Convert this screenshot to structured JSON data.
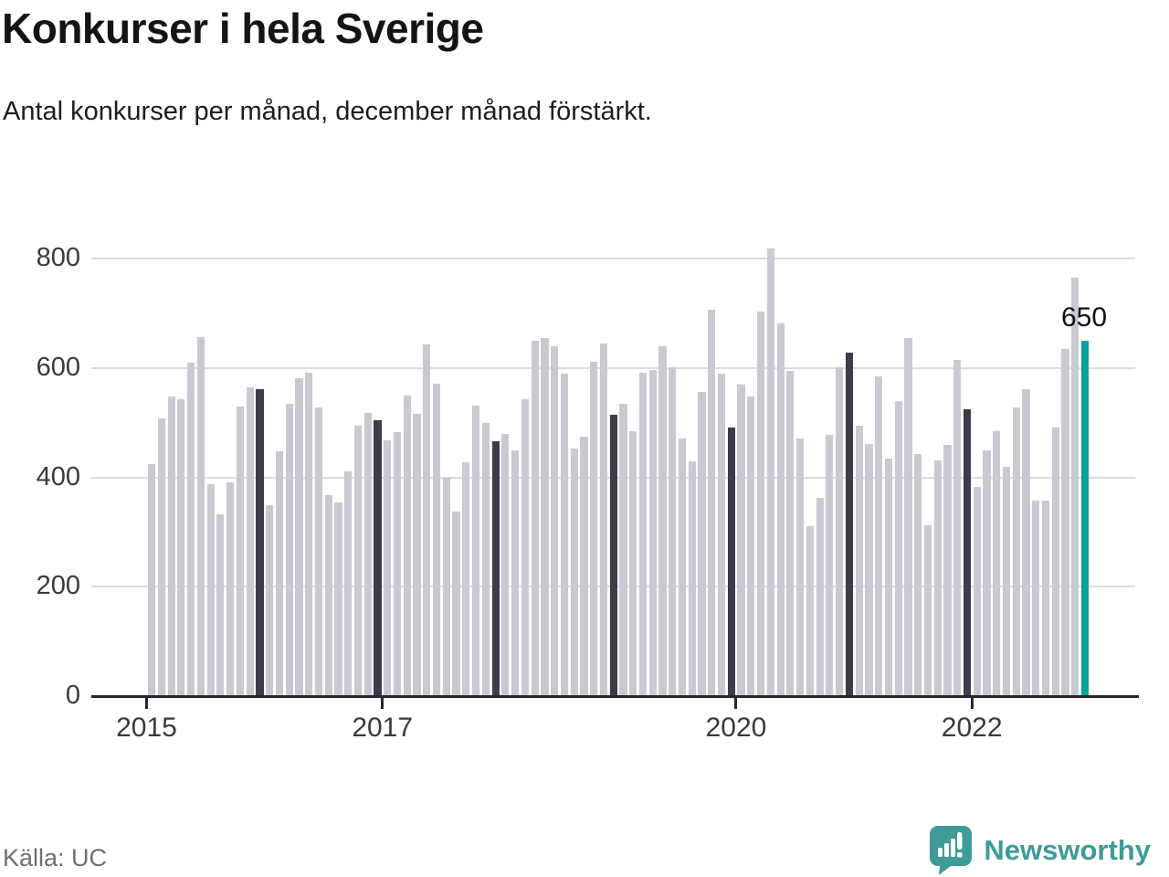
{
  "header": {
    "title": "Konkurser i hela Sverige",
    "subtitle": "Antal konkurser per månad, december månad förstärkt."
  },
  "chart_data": {
    "type": "bar",
    "title": "Konkurser i hela Sverige",
    "xlabel": "",
    "ylabel": "",
    "ylim": [
      0,
      800
    ],
    "yticks": [
      0,
      200,
      400,
      600,
      800
    ],
    "grid": true,
    "start_month": "2015-01",
    "end_month": "2022-12",
    "x_tick_labels": [
      {
        "label": "2015",
        "month_index": 0
      },
      {
        "label": "2017",
        "month_index": 24
      },
      {
        "label": "2020",
        "month_index": 60
      },
      {
        "label": "2022",
        "month_index": 84
      }
    ],
    "annotation": {
      "text": "650",
      "month_index": 95
    },
    "highlight_rule": "December bars dark, latest month teal",
    "series": [
      {
        "name": "Antal konkurser per månad",
        "values": [
          425,
          508,
          548,
          542,
          610,
          657,
          388,
          333,
          390,
          530,
          565,
          561,
          349,
          447,
          534,
          582,
          591,
          528,
          367,
          354,
          411,
          494,
          517,
          504,
          467,
          483,
          550,
          516,
          643,
          572,
          399,
          338,
          427,
          531,
          500,
          466,
          480,
          449,
          542,
          650,
          654,
          640,
          589,
          452,
          474,
          611,
          644,
          515,
          534,
          485,
          592,
          597,
          639,
          602,
          471,
          430,
          556,
          706,
          590,
          491,
          569,
          547,
          703,
          818,
          682,
          594,
          471,
          310,
          363,
          477,
          602,
          628,
          495,
          461,
          584,
          434,
          539,
          654,
          442,
          313,
          431,
          460,
          614,
          524,
          383,
          449,
          485,
          420,
          528,
          562,
          357,
          357,
          491,
          634,
          765,
          650
        ]
      }
    ]
  },
  "footer": {
    "source": "Källa: UC",
    "brand": "Newsworthy"
  },
  "colors": {
    "bar_default": "#c9c9d2",
    "bar_december": "#3c3c4a",
    "bar_latest": "#00a29b",
    "grid": "#dbdbde",
    "axis": "#26262e",
    "brand_teal": "#3e9b98"
  }
}
